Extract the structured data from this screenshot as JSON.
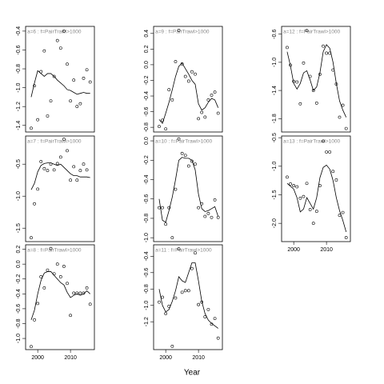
{
  "xlabel": "Year",
  "chart_data": [
    {
      "type": "scatter",
      "title": "a=6 : f=PairTrawl>1000",
      "x": [
        1998,
        1999,
        2000,
        2001,
        2002,
        2003,
        2004,
        2005,
        2006,
        2007,
        2008,
        2009,
        2010,
        2011,
        2012,
        2013,
        2014,
        2015,
        2016
      ],
      "xlim": [
        1996.3,
        2017.3
      ],
      "ylim": [
        -1.47,
        -0.35
      ],
      "yticks": [
        -0.4,
        -0.6,
        -0.8,
        {
          "value": -1,
          "label": "-1.0"
        },
        -1.2,
        -1.4
      ],
      "series": [
        {
          "style": "points",
          "color": "#000000",
          "values": [
            -1.43,
            -0.98,
            -1.34,
            -0.83,
            -0.61,
            -1.3,
            -1.14,
            -0.88,
            -0.5,
            -0.58,
            -0.4,
            -0.75,
            -1.14,
            -0.92,
            -1.2,
            -1.17,
            -0.9,
            -0.81,
            -0.94
          ]
        },
        {
          "style": "line",
          "color": "#000000",
          "values": [
            -1.1,
            -0.95,
            -0.82,
            -0.85,
            -0.88,
            -0.85,
            -0.85,
            -0.88,
            -0.92,
            -0.95,
            -0.98,
            -1.02,
            -1.03,
            -1.05,
            -1.07,
            -1.06,
            -1.05,
            -1.06,
            -1.06
          ]
        }
      ]
    },
    {
      "type": "scatter",
      "title": "a=7 : f=PairTrawl>1000",
      "x": [
        1998,
        1999,
        2000,
        2001,
        2002,
        2003,
        2004,
        2005,
        2006,
        2007,
        2008,
        2009,
        2010,
        2011,
        2012,
        2013,
        2014,
        2015,
        2016
      ],
      "xlim": [
        1996.3,
        2017.3
      ],
      "ylim": [
        -1.71,
        -0.06
      ],
      "yticks": [
        -0.5,
        {
          "value": -1,
          "label": "-1.0"
        },
        -1.5
      ],
      "series": [
        {
          "style": "points",
          "color": "#000000",
          "values": [
            -1.65,
            -1.12,
            -0.89,
            -0.46,
            -0.57,
            -0.6,
            -0.5,
            -0.59,
            -0.49,
            -0.39,
            -0.11,
            -0.29,
            -0.75,
            -0.54,
            -0.75,
            -0.6,
            -0.5,
            -0.59,
            null
          ]
        },
        {
          "style": "line",
          "color": "#000000",
          "values": [
            -0.9,
            -0.8,
            -0.62,
            -0.52,
            -0.49,
            -0.48,
            -0.48,
            -0.5,
            -0.52,
            -0.5,
            -0.55,
            -0.6,
            -0.65,
            -0.68,
            -0.68,
            -0.7,
            -0.7,
            -0.7,
            -0.71
          ]
        }
      ]
    },
    {
      "type": "scatter",
      "title": "a=8 : f=PairTrawl>1000",
      "x": [
        1998,
        1999,
        2000,
        2001,
        2002,
        2003,
        2004,
        2005,
        2006,
        2007,
        2008,
        2009,
        2010,
        2011,
        2012,
        2013,
        2014,
        2015,
        2016
      ],
      "xlim": [
        1996.3,
        2017.3
      ],
      "ylim": [
        -1.15,
        0.26
      ],
      "xticks": [
        2000,
        2010
      ],
      "yticks": [
        0.2,
        {
          "value": 0,
          "label": "0.0"
        },
        -0.2,
        -0.4,
        -0.6,
        -0.8,
        {
          "value": -1,
          "label": "-1.0"
        }
      ],
      "series": [
        {
          "style": "points",
          "color": "#000000",
          "values": [
            -1.11,
            -0.75,
            -0.53,
            -0.17,
            -0.32,
            -0.08,
            0.21,
            -0.13,
            0.0,
            -0.17,
            -0.03,
            -0.26,
            -0.69,
            -0.39,
            -0.39,
            -0.39,
            -0.39,
            -0.32,
            -0.54
          ]
        },
        {
          "style": "line",
          "color": "#000000",
          "values": [
            -0.75,
            -0.62,
            -0.4,
            -0.22,
            -0.12,
            -0.1,
            -0.1,
            -0.15,
            -0.2,
            -0.25,
            -0.28,
            -0.38,
            -0.45,
            -0.42,
            -0.4,
            -0.42,
            -0.4,
            -0.36,
            -0.4
          ]
        }
      ]
    },
    {
      "type": "scatter",
      "title": "a=9 : f=PairTrawl>1000",
      "x": [
        1998,
        1999,
        2000,
        2001,
        2002,
        2003,
        2004,
        2005,
        2006,
        2007,
        2008,
        2009,
        2010,
        2011,
        2012,
        2013,
        2014,
        2015,
        2016
      ],
      "xlim": [
        1996.3,
        2017.3
      ],
      "ylim": [
        -0.86,
        0.49
      ],
      "yticks": [
        0.4,
        0.2,
        {
          "value": 0,
          "label": "0.0"
        },
        -0.2,
        -0.4,
        -0.6,
        -0.8
      ],
      "series": [
        {
          "style": "points",
          "color": "#000000",
          "values": [
            -0.79,
            -0.71,
            -0.82,
            -0.32,
            -0.45,
            0.04,
            0.44,
            0.01,
            -0.15,
            -0.21,
            -0.09,
            -0.12,
            -0.69,
            -0.61,
            -0.67,
            -0.45,
            -0.39,
            -0.35,
            -0.62
          ]
        },
        {
          "style": "line",
          "color": "#000000",
          "values": [
            -0.7,
            -0.75,
            -0.62,
            -0.48,
            -0.32,
            -0.15,
            -0.02,
            0.02,
            -0.05,
            -0.12,
            -0.2,
            -0.25,
            -0.5,
            -0.58,
            -0.55,
            -0.48,
            -0.43,
            -0.45,
            -0.55
          ]
        }
      ]
    },
    {
      "type": "scatter",
      "title": "a=10 : f=PairTrawl>1000",
      "x": [
        1998,
        1999,
        2000,
        2001,
        2002,
        2003,
        2004,
        2005,
        2006,
        2007,
        2008,
        2009,
        2010,
        2011,
        2012,
        2013,
        2014,
        2015,
        2016
      ],
      "xlim": [
        1996.3,
        2017.3
      ],
      "ylim": [
        -1.04,
        0.05
      ],
      "yticks": [
        {
          "value": 0,
          "label": "0.0"
        },
        -0.2,
        -0.4,
        -0.6,
        -0.8,
        {
          "value": -1,
          "label": "-1.0"
        }
      ],
      "series": [
        {
          "style": "points",
          "color": "#000000",
          "values": [
            -0.69,
            -0.69,
            -0.86,
            -0.69,
            -1.0,
            -0.5,
            0.02,
            -0.13,
            -0.15,
            -0.26,
            -0.21,
            -0.24,
            -0.69,
            -0.65,
            -0.78,
            -0.75,
            -0.79,
            -0.61,
            -0.79
          ]
        },
        {
          "style": "line",
          "color": "#000000",
          "values": [
            -0.6,
            -0.82,
            -0.84,
            -0.72,
            -0.58,
            -0.4,
            -0.2,
            -0.17,
            -0.18,
            -0.18,
            -0.2,
            -0.3,
            -0.55,
            -0.7,
            -0.73,
            -0.72,
            -0.7,
            -0.68,
            -0.78
          ]
        }
      ]
    },
    {
      "type": "scatter",
      "title": "a=11 : f=PairTrawl>1000",
      "x": [
        1998,
        1999,
        2000,
        2001,
        2002,
        2003,
        2004,
        2005,
        2006,
        2007,
        2008,
        2009,
        2010,
        2011,
        2012,
        2013,
        2014,
        2015,
        2016
      ],
      "xlim": [
        1996.3,
        2017.3
      ],
      "ylim": [
        -1.54,
        -0.26
      ],
      "xticks": [
        2000,
        2010
      ],
      "yticks": [
        -0.4,
        -0.6,
        -0.8,
        {
          "value": -1,
          "label": "-1.0"
        },
        -1.2
      ],
      "series": [
        {
          "style": "points",
          "color": "#000000",
          "values": [
            -0.96,
            -0.9,
            -1.1,
            -1.01,
            -1.5,
            -0.91,
            -0.31,
            -0.84,
            -0.82,
            -0.82,
            -0.55,
            -0.36,
            -0.99,
            -0.96,
            -1.14,
            -1.05,
            -1.23,
            -1.16,
            -1.4
          ]
        },
        {
          "style": "line",
          "color": "#000000",
          "values": [
            -0.8,
            -1.0,
            -1.08,
            -1.05,
            -0.95,
            -0.82,
            -0.65,
            -0.7,
            -0.72,
            -0.6,
            -0.48,
            -0.48,
            -0.7,
            -0.95,
            -1.1,
            -1.18,
            -1.22,
            -1.25,
            -1.28
          ]
        }
      ]
    },
    {
      "type": "scatter",
      "title": "a=12 : f=PairTrawl>1000",
      "x": [
        1998,
        1999,
        2000,
        2001,
        2002,
        2003,
        2004,
        2005,
        2006,
        2007,
        2008,
        2009,
        2010,
        2011,
        2012,
        2013,
        2014,
        2015,
        2016
      ],
      "xlim": [
        1996.3,
        2017.3
      ],
      "ylim": [
        -1.99,
        -0.49
      ],
      "yticks": [
        -0.6,
        {
          "value": -1,
          "label": "-1.0"
        },
        -1.4,
        -1.8
      ],
      "series": [
        {
          "style": "points",
          "color": "#000000",
          "values": [
            -0.79,
            -1.04,
            -1.27,
            -1.28,
            -1.59,
            -1.01,
            -0.55,
            -1.2,
            -1.4,
            -1.58,
            -1.17,
            -0.77,
            -0.87,
            -0.87,
            -1.11,
            -1.31,
            -1.78,
            -1.61,
            -1.94
          ]
        },
        {
          "style": "line",
          "color": "#000000",
          "values": [
            -0.85,
            -1.05,
            -1.3,
            -1.38,
            -1.3,
            -1.15,
            -1.12,
            -1.25,
            -1.4,
            -1.35,
            -1.15,
            -0.85,
            -0.75,
            -0.8,
            -1.0,
            -1.3,
            -1.55,
            -1.68,
            -1.78
          ]
        }
      ]
    },
    {
      "type": "scatter",
      "title": "a=13 : f=PairTrawl>1000",
      "x": [
        1998,
        1999,
        2000,
        2001,
        2002,
        2003,
        2004,
        2005,
        2006,
        2007,
        2008,
        2009,
        2010,
        2011,
        2012,
        2013,
        2014,
        2015,
        2016
      ],
      "xlim": [
        1996.3,
        2017.3
      ],
      "ylim": [
        -2.32,
        -0.47
      ],
      "xticks": [
        2000,
        2010
      ],
      "yticks": [
        -0.5,
        {
          "value": -1,
          "label": "-1.0"
        },
        -1.5,
        {
          "value": -2,
          "label": "-2.0"
        }
      ],
      "series": [
        {
          "style": "points",
          "color": "#000000",
          "values": [
            -1.19,
            -1.31,
            -1.34,
            -1.36,
            -1.56,
            -1.53,
            -1.3,
            -1.76,
            -2.0,
            -1.79,
            -1.34,
            -0.56,
            -0.75,
            -0.75,
            -1.09,
            -1.24,
            -1.86,
            -1.81,
            -2.25
          ]
        },
        {
          "style": "line",
          "color": "#000000",
          "values": [
            -1.3,
            -1.35,
            -1.4,
            -1.55,
            -1.8,
            -1.75,
            -1.55,
            -1.65,
            -1.75,
            -1.55,
            -1.2,
            -1.02,
            -0.98,
            -1.05,
            -1.25,
            -1.55,
            -1.78,
            -1.95,
            -2.15
          ]
        }
      ]
    }
  ]
}
